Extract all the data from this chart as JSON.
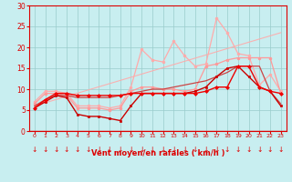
{
  "xlabel": "Vent moyen/en rafales ( km/h )",
  "background_color": "#c8eef0",
  "grid_color": "#99cccc",
  "text_color": "#dd0000",
  "xlim": [
    -0.5,
    23.5
  ],
  "ylim": [
    0,
    30
  ],
  "yticks": [
    0,
    5,
    10,
    15,
    20,
    25,
    30
  ],
  "xticks": [
    0,
    1,
    2,
    3,
    4,
    5,
    6,
    7,
    8,
    9,
    10,
    11,
    12,
    13,
    14,
    15,
    16,
    17,
    18,
    19,
    20,
    21,
    22,
    23
  ],
  "lines": [
    {
      "x": [
        0,
        23
      ],
      "y": [
        6.0,
        23.5
      ],
      "color": "#ffaaaa",
      "linewidth": 0.8,
      "marker": null,
      "markersize": 0,
      "alpha": 0.9,
      "zorder": 2
    },
    {
      "x": [
        0,
        1,
        2,
        3,
        4,
        5,
        6,
        7,
        8,
        9,
        10,
        11,
        12,
        13,
        14,
        15,
        16,
        17,
        18,
        19,
        20,
        21,
        22,
        23
      ],
      "y": [
        7.0,
        9.5,
        9.5,
        9.0,
        6.0,
        6.0,
        6.0,
        5.5,
        6.0,
        10.5,
        19.5,
        17.0,
        16.5,
        21.5,
        18.0,
        15.5,
        16.0,
        27.0,
        23.5,
        18.5,
        18.0,
        11.0,
        13.5,
        9.5
      ],
      "color": "#ffaaaa",
      "linewidth": 0.9,
      "marker": "o",
      "markersize": 2.0,
      "alpha": 1.0,
      "zorder": 3
    },
    {
      "x": [
        0,
        1,
        2,
        3,
        4,
        5,
        6,
        7,
        8,
        9,
        10,
        11,
        12,
        13,
        14,
        15,
        16,
        17,
        18,
        19,
        20,
        21,
        22,
        23
      ],
      "y": [
        6.5,
        9.0,
        9.0,
        8.5,
        5.5,
        5.5,
        5.5,
        5.0,
        5.5,
        9.5,
        10.5,
        10.5,
        10.0,
        10.0,
        9.5,
        10.0,
        15.5,
        16.0,
        17.0,
        17.5,
        17.5,
        17.5,
        17.5,
        9.0
      ],
      "color": "#ff9999",
      "linewidth": 0.9,
      "marker": "o",
      "markersize": 2.0,
      "alpha": 1.0,
      "zorder": 3
    },
    {
      "x": [
        0,
        1,
        2,
        3,
        4,
        5,
        6,
        7,
        8,
        9,
        10,
        11,
        12,
        13,
        14,
        15,
        16,
        17,
        18,
        19,
        20,
        21,
        22,
        23
      ],
      "y": [
        6.0,
        7.5,
        8.5,
        8.5,
        8.0,
        8.0,
        8.0,
        8.0,
        8.5,
        9.0,
        9.5,
        10.0,
        10.0,
        10.5,
        11.0,
        11.5,
        12.0,
        13.0,
        14.0,
        15.5,
        15.5,
        15.5,
        9.5,
        6.5
      ],
      "color": "#cc4444",
      "linewidth": 0.9,
      "marker": null,
      "markersize": 0,
      "alpha": 1.0,
      "zorder": 3
    },
    {
      "x": [
        0,
        1,
        2,
        3,
        4,
        5,
        6,
        7,
        8,
        9,
        10,
        11,
        12,
        13,
        14,
        15,
        16,
        17,
        18,
        19,
        20,
        21,
        22,
        23
      ],
      "y": [
        5.5,
        7.0,
        8.5,
        8.0,
        4.0,
        3.5,
        3.5,
        3.0,
        2.5,
        6.0,
        9.0,
        9.0,
        9.0,
        9.0,
        9.0,
        9.5,
        10.5,
        13.0,
        15.0,
        15.5,
        13.0,
        10.5,
        9.5,
        6.0
      ],
      "color": "#cc0000",
      "linewidth": 1.0,
      "marker": "s",
      "markersize": 2.0,
      "alpha": 1.0,
      "zorder": 4
    },
    {
      "x": [
        0,
        1,
        2,
        3,
        4,
        5,
        6,
        7,
        8,
        9,
        10,
        11,
        12,
        13,
        14,
        15,
        16,
        17,
        18,
        19,
        20,
        21,
        22,
        23
      ],
      "y": [
        5.5,
        7.5,
        9.0,
        9.0,
        8.5,
        8.5,
        8.5,
        8.5,
        8.5,
        9.0,
        9.0,
        9.0,
        9.0,
        9.0,
        9.0,
        9.0,
        9.5,
        10.5,
        10.5,
        15.5,
        15.5,
        10.5,
        9.5,
        9.0
      ],
      "color": "#ee0000",
      "linewidth": 1.0,
      "marker": "D",
      "markersize": 2.0,
      "alpha": 1.0,
      "zorder": 5
    }
  ],
  "arrow_symbol": "↓",
  "arrow_fontsize": 5.5
}
